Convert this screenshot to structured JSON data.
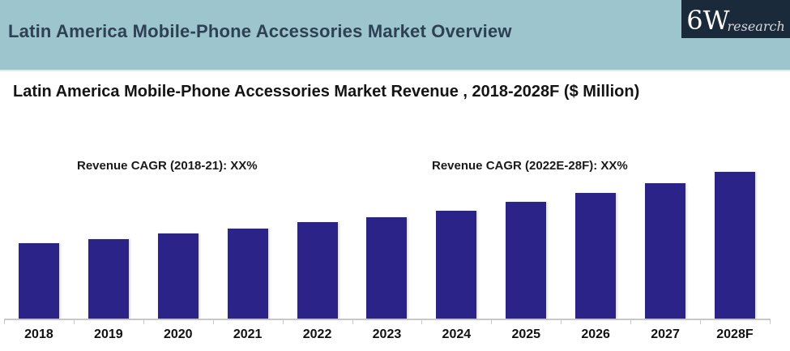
{
  "header": {
    "title": "Latin America Mobile-Phone Accessories Market Overview",
    "logo": {
      "main": "6W",
      "sub": "research"
    }
  },
  "subtitle": "Latin America Mobile-Phone Accessories Market Revenue , 2018-2028F ($ Million)",
  "annotations": {
    "cagr_left": "Revenue CAGR (2018-21):  XX%",
    "cagr_right": "Revenue CAGR (2022E-28F): XX%"
  },
  "colors": {
    "header_bg": "#9cc5cd",
    "header_text": "#2e4053",
    "logo_bg": "#1b2a3b",
    "bar": "#2b2387",
    "axis": "#c8c8c8",
    "text": "#1a1a1a"
  },
  "chart_data": {
    "type": "bar",
    "title": "Latin America Mobile-Phone Accessories Market Revenue , 2018-2028F ($ Million)",
    "categories": [
      "2018",
      "2019",
      "2020",
      "2021",
      "2022",
      "2023",
      "2024",
      "2025",
      "2026",
      "2027",
      "2028F"
    ],
    "values": [
      51.4,
      54.1,
      58.0,
      61.3,
      65.7,
      69.1,
      73.5,
      79.6,
      85.6,
      92.3,
      100.0
    ],
    "value_scale": "relative units (actual revenue values not labeled on chart; tallest bar 2028F = 100)",
    "bar_color": "#2b2387",
    "xlabel": "",
    "ylabel": "",
    "ylim": [
      0,
      100
    ],
    "grid": false,
    "legend": false,
    "annotations": [
      "Revenue CAGR (2018-21):  XX%",
      "Revenue CAGR (2022E-28F): XX%"
    ]
  }
}
